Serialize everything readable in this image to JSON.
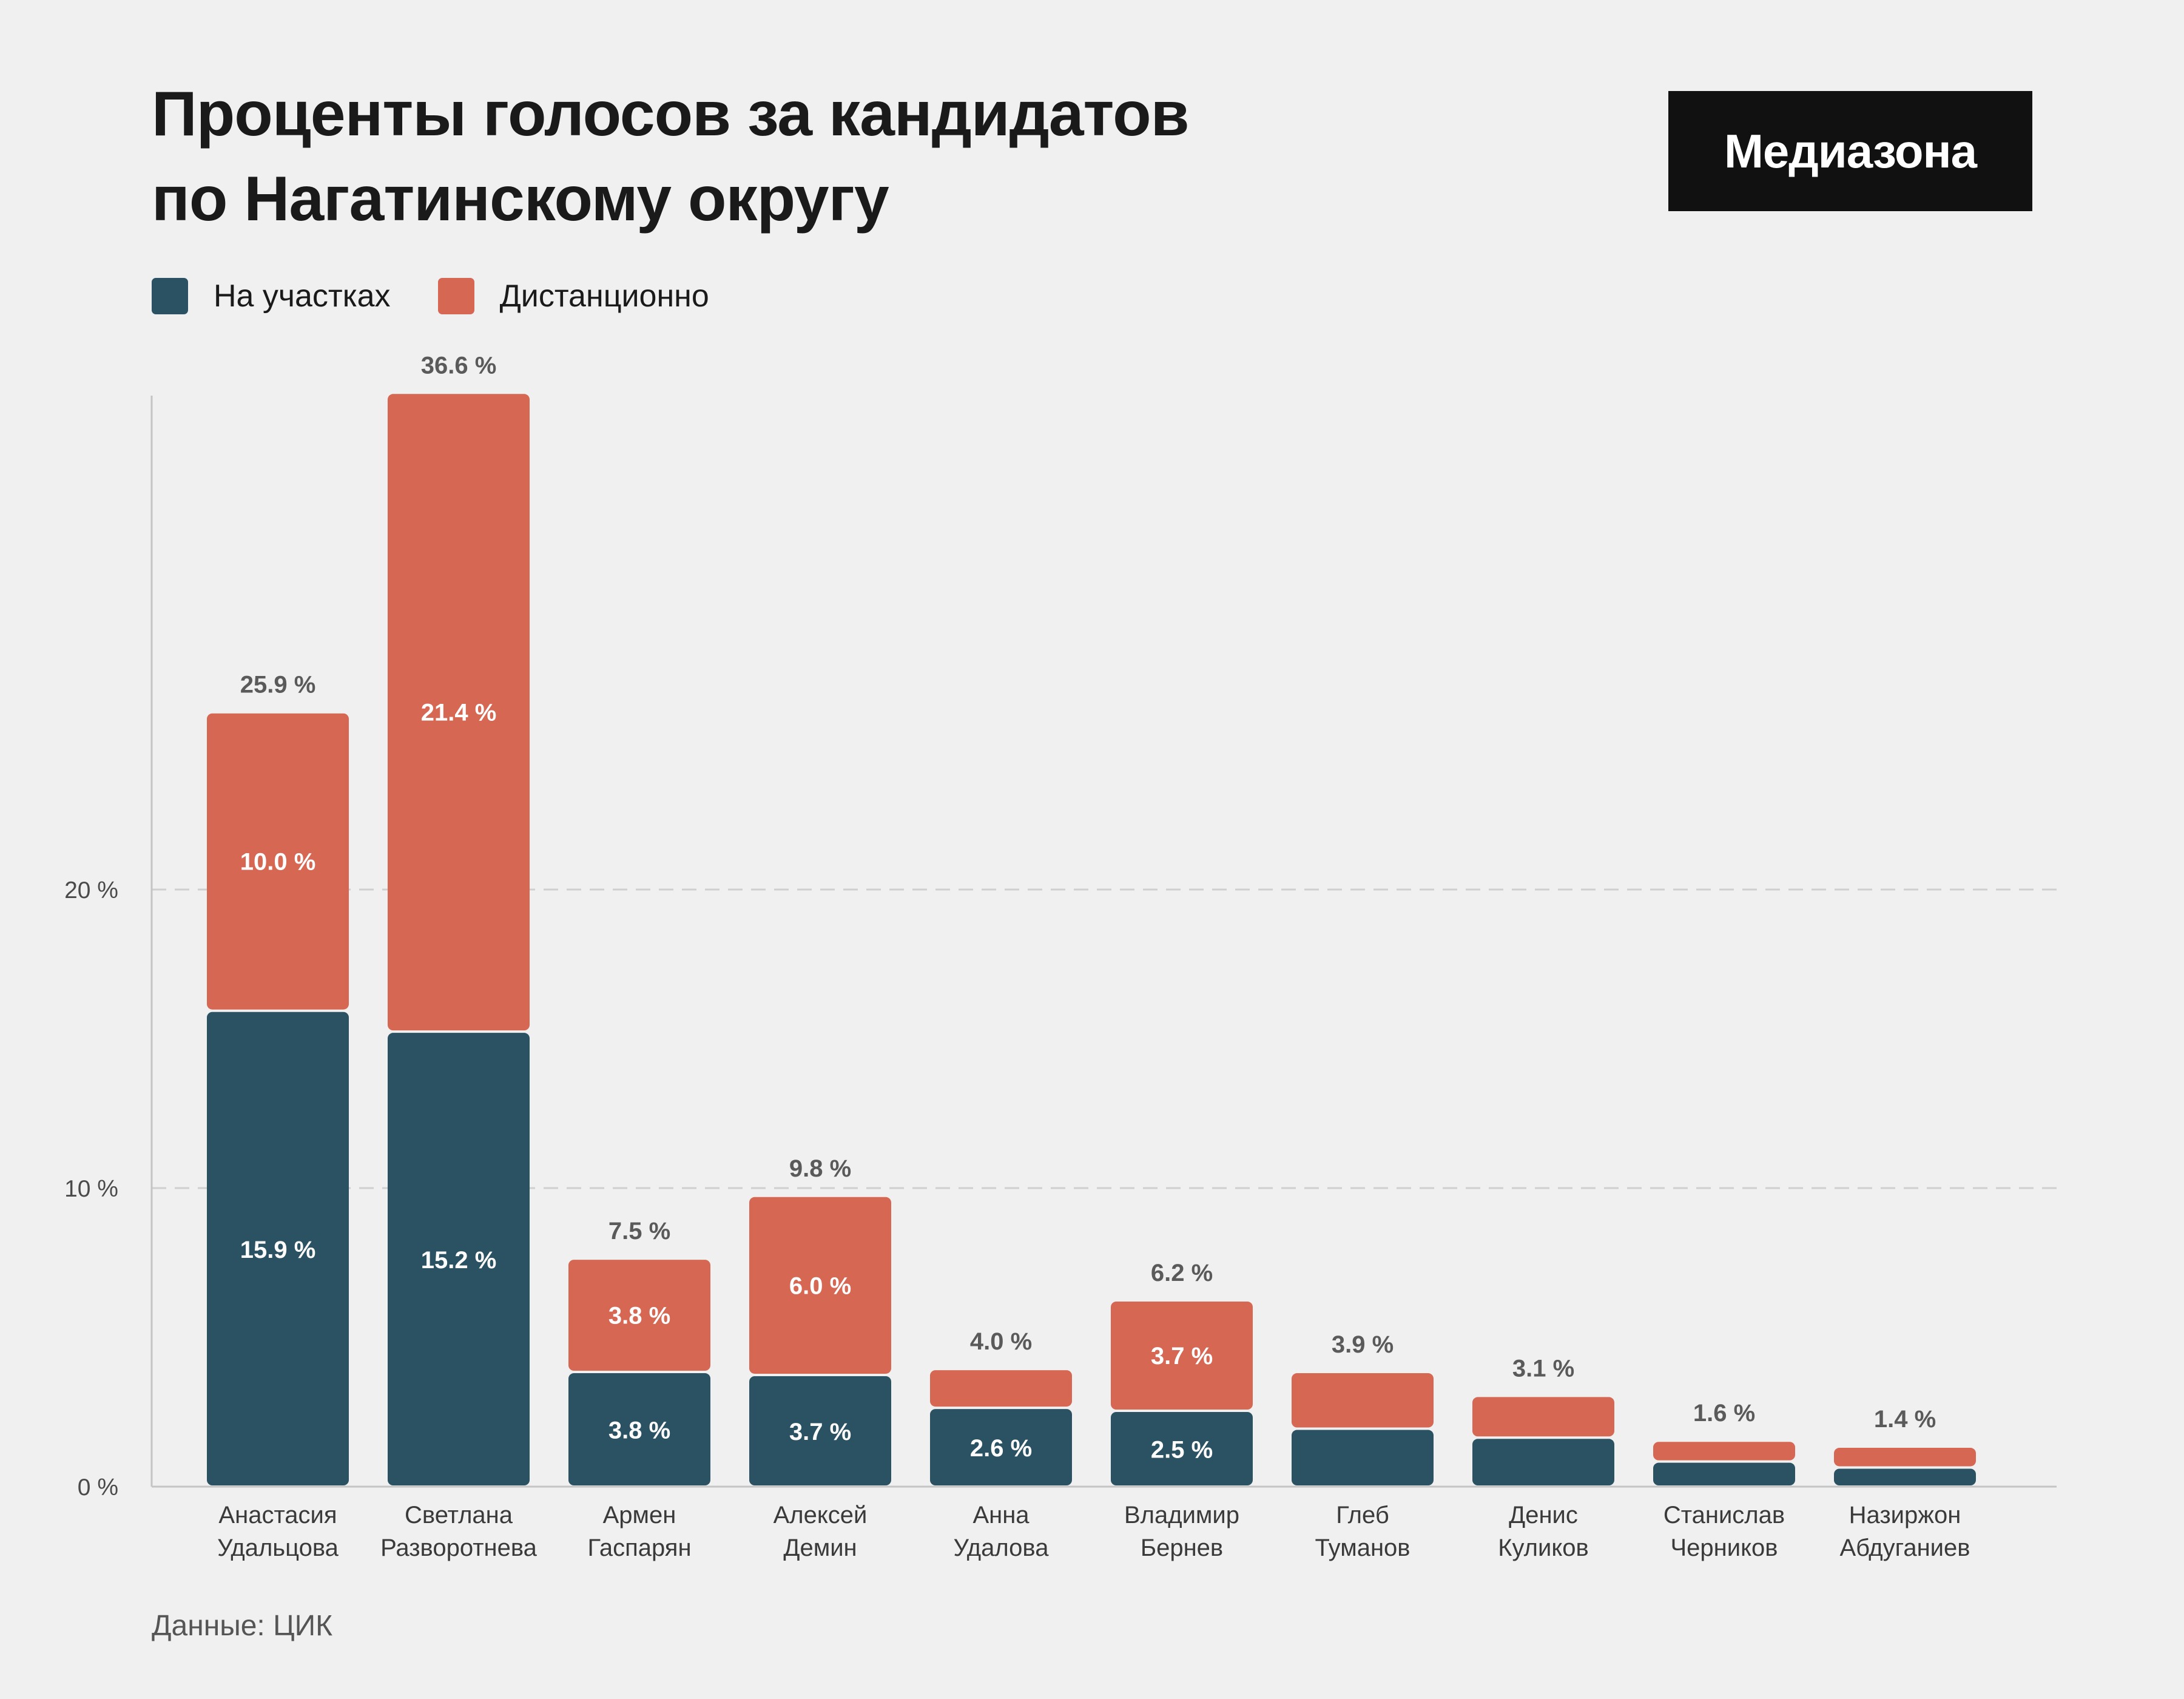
{
  "title": {
    "line1": "Проценты голосов за кандидатов",
    "line2": "по Нагатинскому округу"
  },
  "logo": {
    "text": "Медиазона"
  },
  "legend": [
    {
      "label": "На участках",
      "color": "#2b5263"
    },
    {
      "label": "Дистанционно",
      "color": "#d66753"
    }
  ],
  "source": "Данные: ЦИК",
  "chart_data": {
    "type": "bar",
    "stacked": true,
    "title": "Проценты голосов за кандидатов по Нагатинскому округу",
    "xlabel": "",
    "ylabel": "",
    "ylim": [
      0,
      36.6
    ],
    "yticks": [
      {
        "value": 0,
        "label": "0 %"
      },
      {
        "value": 10,
        "label": "10 %"
      },
      {
        "value": 20,
        "label": "20 %"
      }
    ],
    "grid": "horizontal dashed",
    "legend_position": "top-left",
    "categories": [
      [
        "Анастасия",
        "Удальцова"
      ],
      [
        "Светлана",
        "Разворотнева"
      ],
      [
        "Армен",
        "Гаспарян"
      ],
      [
        "Алексей",
        "Демин"
      ],
      [
        "Анна",
        "Удалова"
      ],
      [
        "Владимир",
        "Бернев"
      ],
      [
        "Глеб",
        "Туманов"
      ],
      [
        "Денис",
        "Куликов"
      ],
      [
        "Станислав",
        "Черников"
      ],
      [
        "Назиржон",
        "Абдуганиев"
      ]
    ],
    "series": [
      {
        "name": "На участках",
        "color": "#2b5263",
        "values": [
          15.9,
          15.2,
          3.8,
          3.7,
          2.6,
          2.5,
          1.9,
          1.6,
          0.8,
          0.6
        ],
        "labels": [
          "15.9 %",
          "15.2 %",
          "3.8 %",
          "3.7 %",
          "2.6 %",
          "2.5 %",
          "",
          "",
          "",
          ""
        ]
      },
      {
        "name": "Дистанционно",
        "color": "#d66753",
        "values": [
          10.0,
          21.4,
          3.8,
          6.0,
          1.3,
          3.7,
          1.9,
          1.4,
          0.7,
          0.7
        ],
        "labels": [
          "10.0 %",
          "21.4 %",
          "3.8 %",
          "6.0 %",
          "",
          "3.7 %",
          "",
          "",
          "",
          ""
        ]
      }
    ],
    "totals": [
      25.9,
      36.6,
      7.5,
      9.8,
      4.0,
      6.2,
      3.9,
      3.1,
      1.6,
      1.4
    ],
    "total_labels": [
      "25.9 %",
      "36.6 %",
      "7.5 %",
      "9.8 %",
      "4.0 %",
      "6.2 %",
      "3.9 %",
      "3.1 %",
      "1.6 %",
      "1.4 %"
    ]
  }
}
